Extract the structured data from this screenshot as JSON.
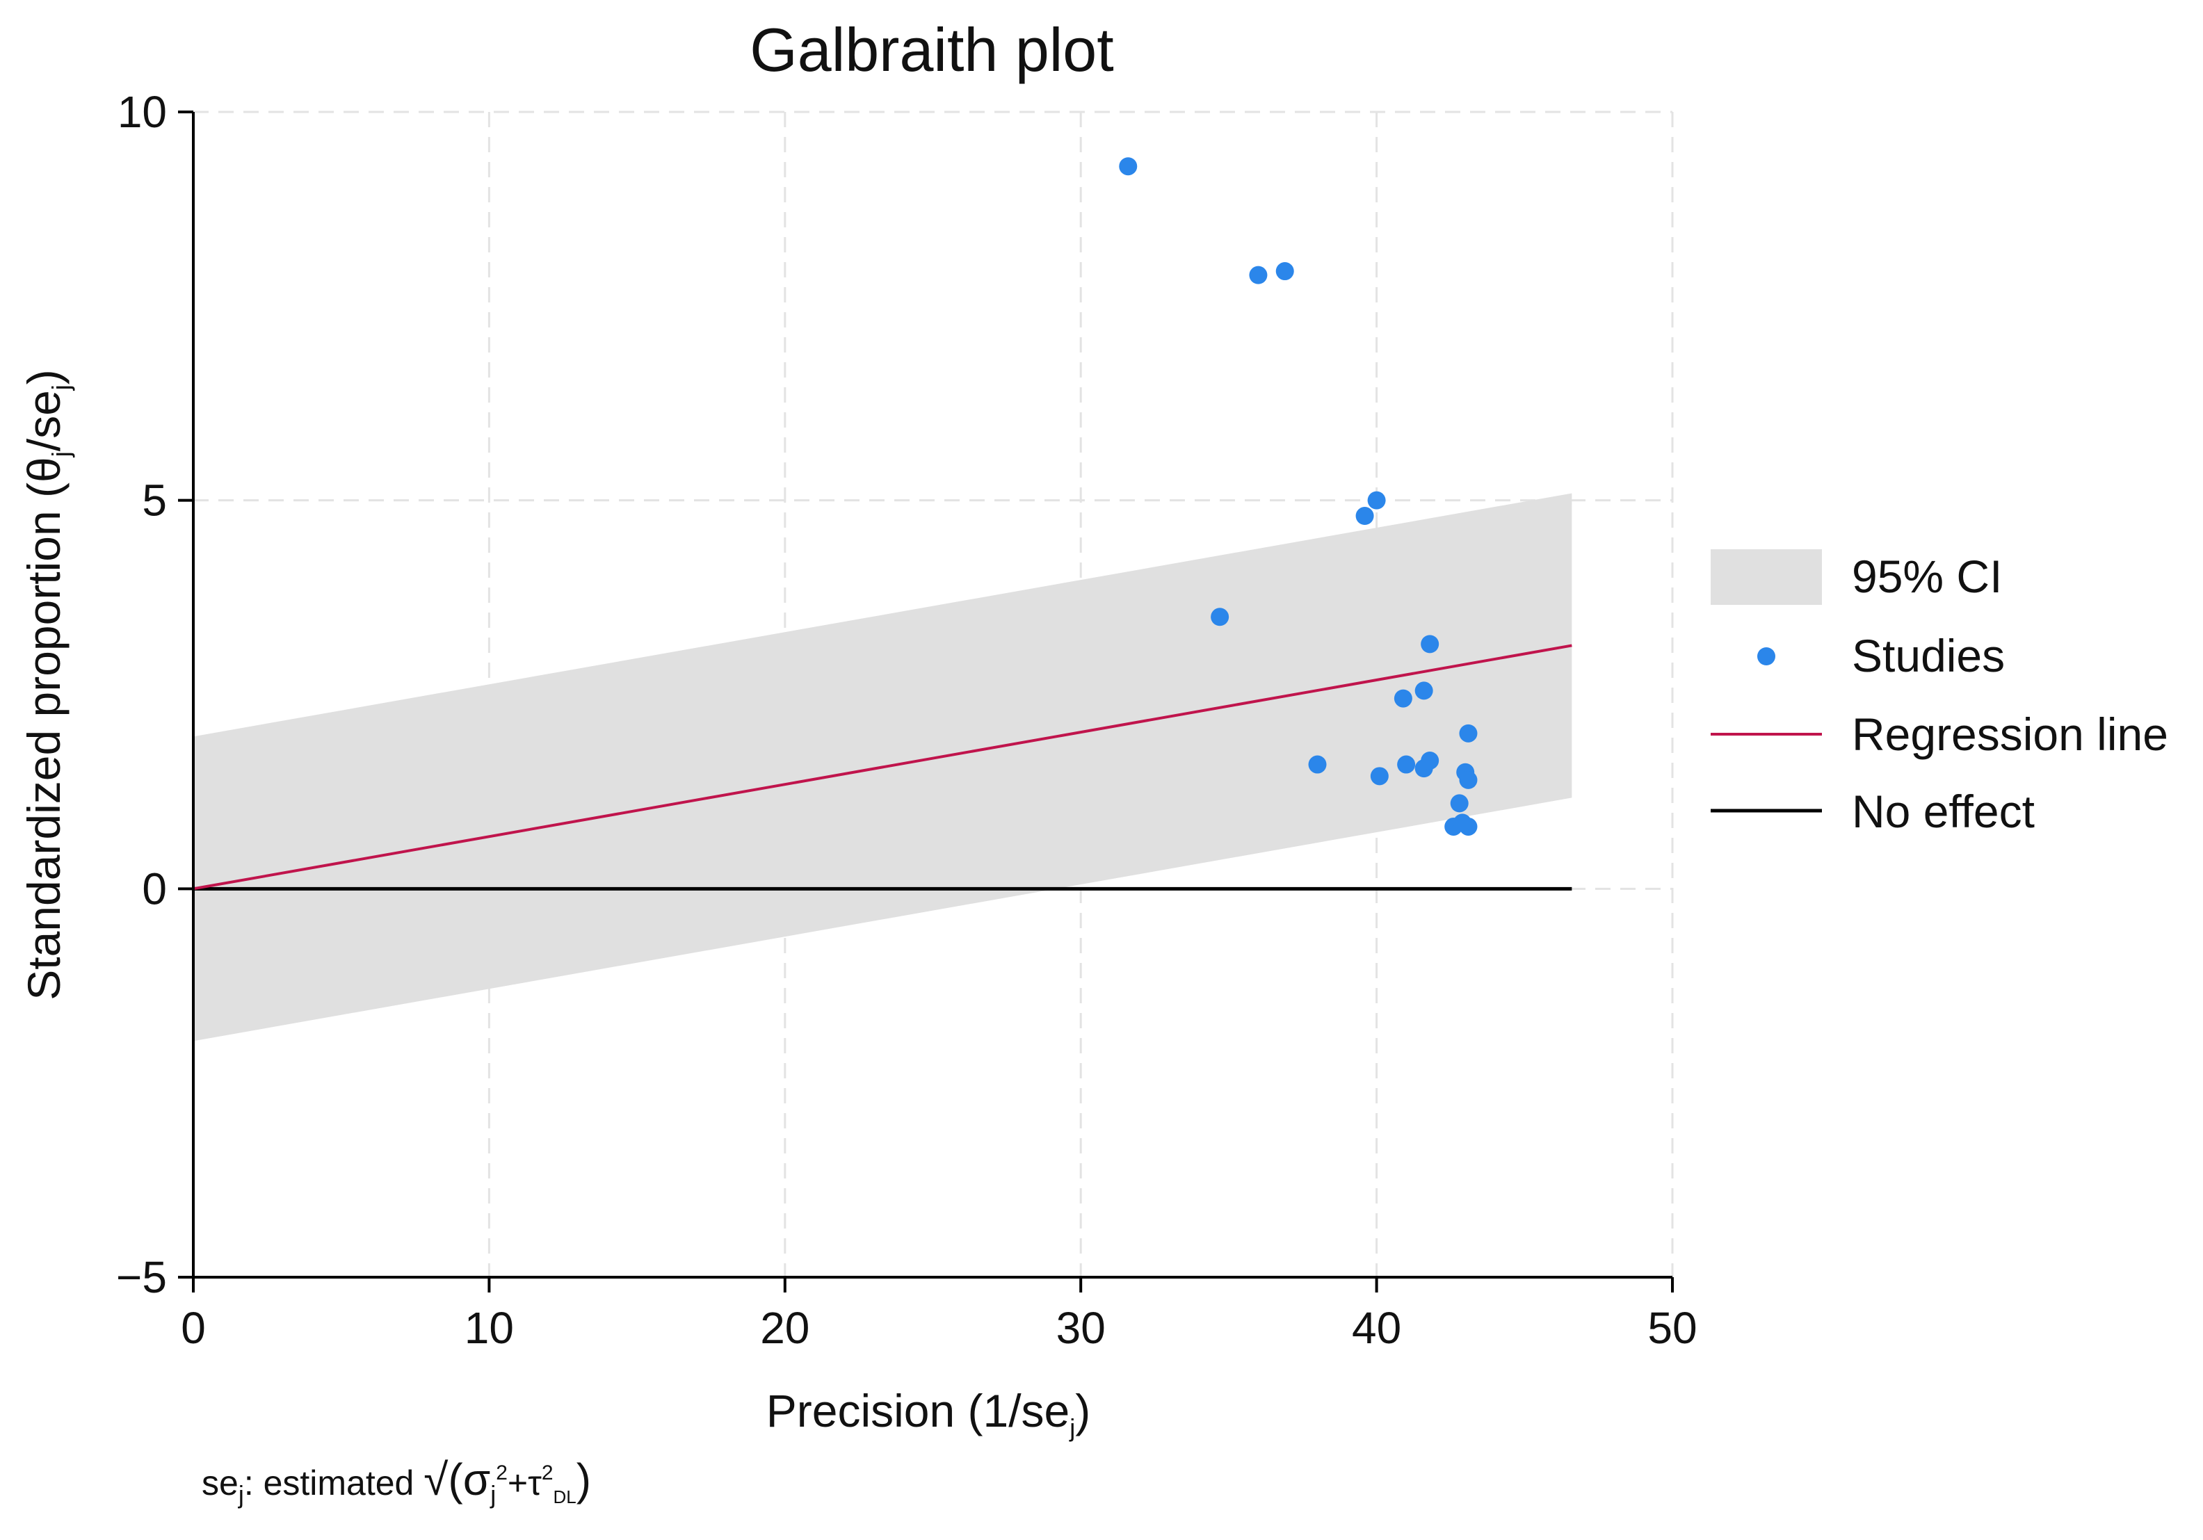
{
  "chart_data": {
    "type": "scatter",
    "title": "Galbraith plot",
    "xlabel": "Precision (1/se",
    "xlabel_sub": "j",
    "xlabel_close": ")",
    "ylabel": "Standardized proportion  (θ",
    "ylabel_sub": "j",
    "ylabel_mid": "/se",
    "ylabel_sub2": "j",
    "ylabel_close": ")",
    "xlim": [
      0,
      50
    ],
    "ylim": [
      -5,
      10
    ],
    "x_ticks": [
      0,
      10,
      20,
      30,
      40,
      50
    ],
    "y_ticks": [
      -5,
      0,
      5,
      10
    ],
    "y_tick_labels": [
      "−5",
      "0",
      "5",
      "10"
    ],
    "grid": true,
    "regression": {
      "slope": 0.0672,
      "intercept": 0.0,
      "x_end": 46.6
    },
    "ci_band": {
      "half_width": 1.96,
      "x_end": 46.6
    },
    "no_effect": {
      "y": 0,
      "x_end": 46.6
    },
    "studies": {
      "x": [
        31.6,
        36.0,
        36.9,
        39.6,
        40.0,
        34.7,
        41.8,
        40.9,
        41.6,
        43.1,
        38.0,
        40.1,
        41.0,
        41.6,
        41.8,
        43.0,
        43.1,
        42.8,
        42.6,
        43.1,
        42.9
      ],
      "y": [
        9.3,
        7.9,
        7.95,
        4.8,
        5.0,
        3.5,
        3.15,
        2.45,
        2.55,
        2.0,
        1.6,
        1.45,
        1.6,
        1.55,
        1.65,
        1.5,
        1.4,
        1.1,
        0.8,
        0.8,
        0.85
      ]
    },
    "legend": [
      "95% CI",
      "Studies",
      "Regression line",
      "No effect"
    ],
    "legend_position": "right",
    "colors": {
      "points": "#2b86ea",
      "regression": "#c0144c",
      "band": "#e0e0e0",
      "no_effect": "#000000",
      "grid": "#e3e3e3"
    },
    "note": {
      "prefix": "se",
      "prefix_sub": "j",
      "text": ": estimated ",
      "radical": "√",
      "paren_open": "(σ",
      "sigma_sub": "j",
      "sigma_sup": "2",
      "plus": "+τ",
      "tau_sup": "2",
      "tau_sub": "DL",
      "paren_close": ")"
    }
  }
}
